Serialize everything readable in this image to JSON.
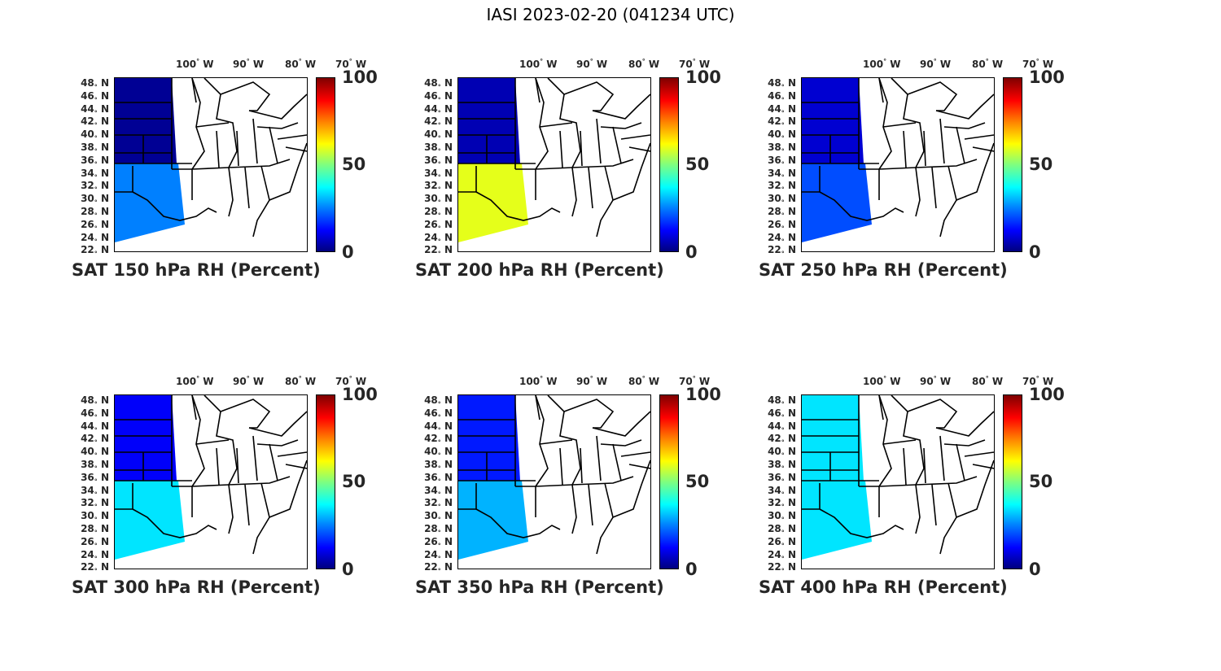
{
  "title": "IASI 2023-02-20 (041234 UTC)",
  "lon_labels": [
    "100",
    "90",
    "80",
    "70"
  ],
  "lon_suffix": "W",
  "lat_labels": [
    "48",
    "46",
    "44",
    "42",
    "40",
    "38",
    "36",
    "34",
    "32",
    "30",
    "28",
    "26",
    "24",
    "22"
  ],
  "lat_suffix": "N",
  "degree_symbol": "°",
  "colorbar": {
    "ticks": [
      "100",
      "50",
      "0"
    ],
    "min": 0,
    "max": 100,
    "colormap": "jet"
  },
  "panels": [
    {
      "title": "SAT 150 hPa RH (Percent)",
      "level_hpa": 150,
      "north_rh": 2,
      "south_rh": 25
    },
    {
      "title": "SAT 200 hPa RH (Percent)",
      "level_hpa": 200,
      "north_rh": 5,
      "south_rh": 60
    },
    {
      "title": "SAT 250 hPa RH (Percent)",
      "level_hpa": 250,
      "north_rh": 8,
      "south_rh": 20
    },
    {
      "title": "SAT 300 hPa RH (Percent)",
      "level_hpa": 300,
      "north_rh": 12,
      "south_rh": 35
    },
    {
      "title": "SAT 350 hPa RH (Percent)",
      "level_hpa": 350,
      "north_rh": 15,
      "south_rh": 30
    },
    {
      "title": "SAT 400 hPa RH (Percent)",
      "level_hpa": 400,
      "north_rh": 35,
      "south_rh": 35
    }
  ]
}
